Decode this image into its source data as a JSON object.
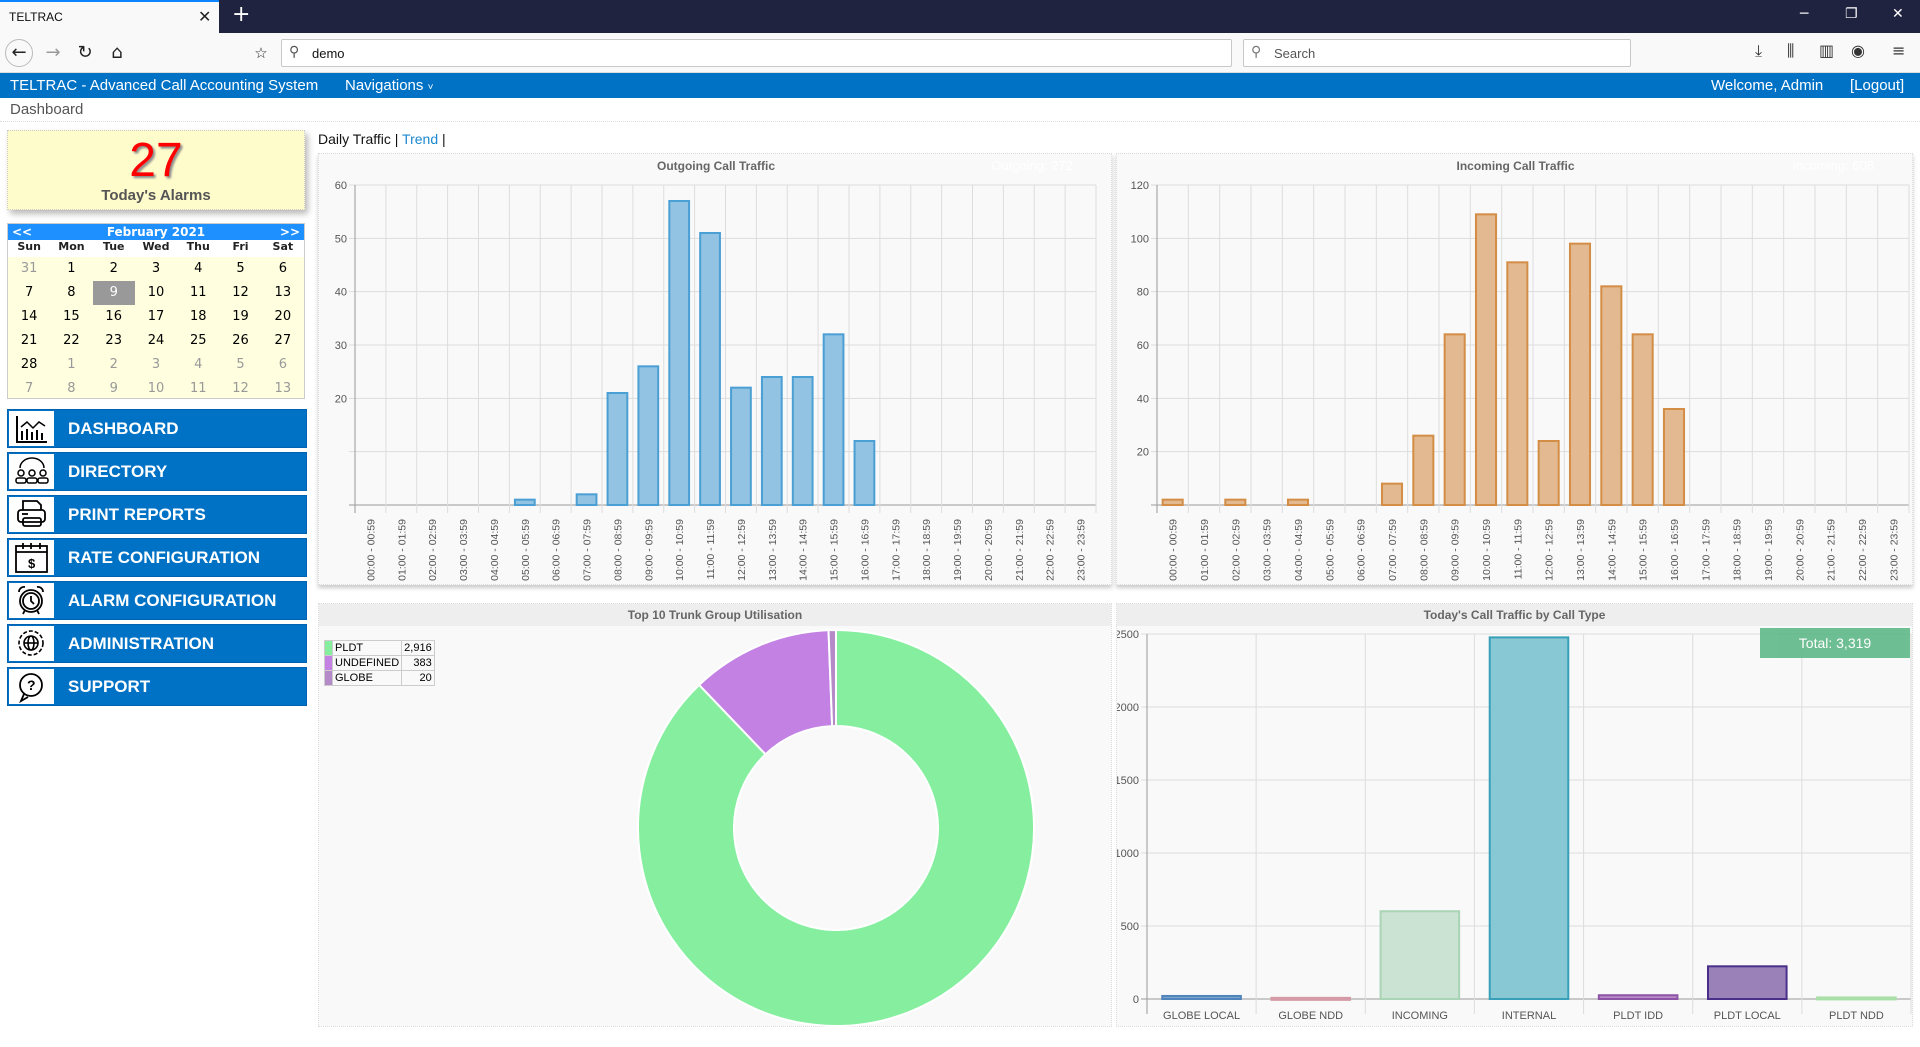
{
  "browser": {
    "tab_title": "TELTRAC",
    "url": "demo",
    "search_placeholder": "Search"
  },
  "app": {
    "title": "TELTRAC - Advanced Call Accounting System",
    "nav_label": "Navigations",
    "welcome": "Welcome, Admin",
    "logout": "[Logout]",
    "breadcrumb": "Dashboard"
  },
  "alarms": {
    "count": "27",
    "label": "Today's Alarms"
  },
  "calendar": {
    "prev": "<<",
    "next": ">>",
    "month": "February 2021",
    "dow": [
      "Sun",
      "Mon",
      "Tue",
      "Wed",
      "Thu",
      "Fri",
      "Sat"
    ],
    "weeks": [
      [
        {
          "d": "31",
          "o": true
        },
        {
          "d": "1"
        },
        {
          "d": "2"
        },
        {
          "d": "3"
        },
        {
          "d": "4"
        },
        {
          "d": "5"
        },
        {
          "d": "6"
        }
      ],
      [
        {
          "d": "7"
        },
        {
          "d": "8"
        },
        {
          "d": "9",
          "sel": true
        },
        {
          "d": "10"
        },
        {
          "d": "11"
        },
        {
          "d": "12"
        },
        {
          "d": "13"
        }
      ],
      [
        {
          "d": "14"
        },
        {
          "d": "15"
        },
        {
          "d": "16"
        },
        {
          "d": "17"
        },
        {
          "d": "18"
        },
        {
          "d": "19"
        },
        {
          "d": "20"
        }
      ],
      [
        {
          "d": "21"
        },
        {
          "d": "22"
        },
        {
          "d": "23"
        },
        {
          "d": "24"
        },
        {
          "d": "25"
        },
        {
          "d": "26"
        },
        {
          "d": "27"
        }
      ],
      [
        {
          "d": "28"
        },
        {
          "d": "1",
          "o": true
        },
        {
          "d": "2",
          "o": true
        },
        {
          "d": "3",
          "o": true
        },
        {
          "d": "4",
          "o": true
        },
        {
          "d": "5",
          "o": true
        },
        {
          "d": "6",
          "o": true
        }
      ],
      [
        {
          "d": "7",
          "o": true
        },
        {
          "d": "8",
          "o": true
        },
        {
          "d": "9",
          "o": true
        },
        {
          "d": "10",
          "o": true
        },
        {
          "d": "11",
          "o": true
        },
        {
          "d": "12",
          "o": true
        },
        {
          "d": "13",
          "o": true
        }
      ]
    ]
  },
  "menu": [
    {
      "label": "DASHBOARD",
      "icon": "dashboard-chart-icon"
    },
    {
      "label": "DIRECTORY",
      "icon": "people-group-icon"
    },
    {
      "label": "PRINT REPORTS",
      "icon": "printer-icon"
    },
    {
      "label": "RATE CONFIGURATION",
      "icon": "calendar-dollar-icon"
    },
    {
      "label": "ALARM CONFIGURATION",
      "icon": "alarm-clock-icon"
    },
    {
      "label": "ADMINISTRATION",
      "icon": "gear-globe-icon"
    },
    {
      "label": "SUPPORT",
      "icon": "help-bubble-icon"
    }
  ],
  "links": {
    "daily": "Daily Traffic",
    "sep": " | ",
    "trend": "Trend",
    "sep2": " |"
  },
  "chart_data": [
    {
      "type": "bar",
      "title": "Outgoing Call Traffic",
      "total_label": "Outgoing: 272",
      "color": "#4a9fd4",
      "fill": "#93c3e3",
      "categories": [
        "00:00 - 00:59",
        "01:00 - 01:59",
        "02:00 - 02:59",
        "03:00 - 03:59",
        "04:00 - 04:59",
        "05:00 - 05:59",
        "06:00 - 06:59",
        "07:00 - 07:59",
        "08:00 - 08:59",
        "09:00 - 09:59",
        "10:00 - 10:59",
        "11:00 - 11:59",
        "12:00 - 12:59",
        "13:00 - 13:59",
        "14:00 - 14:59",
        "15:00 - 15:59",
        "16:00 - 16:59",
        "17:00 - 17:59",
        "18:00 - 18:59",
        "19:00 - 19:59",
        "20:00 - 20:59",
        "21:00 - 21:59",
        "22:00 - 22:59",
        "23:00 - 23:59"
      ],
      "values": [
        0,
        0,
        0,
        0,
        0,
        1,
        0,
        2,
        21,
        26,
        57,
        51,
        22,
        24,
        24,
        32,
        12,
        0,
        0,
        0,
        0,
        0,
        0,
        0
      ],
      "ylim": [
        0,
        60
      ],
      "yticks": [
        20,
        30,
        40,
        50,
        60
      ],
      "ygrid": [
        0,
        10,
        20,
        30,
        40,
        50,
        60
      ],
      "grid": true
    },
    {
      "type": "bar",
      "title": "Incoming Call Traffic",
      "total_label": "Incoming: 608",
      "color": "#d38d44",
      "fill": "#e3b992",
      "categories": [
        "00:00 - 00:59",
        "01:00 - 01:59",
        "02:00 - 02:59",
        "03:00 - 03:59",
        "04:00 - 04:59",
        "05:00 - 05:59",
        "06:00 - 06:59",
        "07:00 - 07:59",
        "08:00 - 08:59",
        "09:00 - 09:59",
        "10:00 - 10:59",
        "11:00 - 11:59",
        "12:00 - 12:59",
        "13:00 - 13:59",
        "14:00 - 14:59",
        "15:00 - 15:59",
        "16:00 - 16:59",
        "17:00 - 17:59",
        "18:00 - 18:59",
        "19:00 - 19:59",
        "20:00 - 20:59",
        "21:00 - 21:59",
        "22:00 - 22:59",
        "23:00 - 23:59"
      ],
      "values": [
        2,
        0,
        2,
        0,
        2,
        0,
        0,
        8,
        26,
        64,
        109,
        91,
        24,
        98,
        82,
        64,
        36,
        0,
        0,
        0,
        0,
        0,
        0,
        0
      ],
      "ylim": [
        0,
        120
      ],
      "yticks": [
        20,
        40,
        60,
        80,
        100,
        120
      ],
      "ygrid": [
        0,
        20,
        40,
        60,
        80,
        100,
        120
      ],
      "grid": true
    },
    {
      "type": "pie",
      "title": "Top 10 Trunk Group Utilisation",
      "donut": true,
      "slices": [
        {
          "label": "PLDT",
          "value": 2916,
          "display": "2,916",
          "color": "#86ee9f"
        },
        {
          "label": "UNDEFINED",
          "value": 383,
          "display": "383",
          "color": "#c281e3"
        },
        {
          "label": "GLOBE",
          "value": 20,
          "display": "20",
          "color": "#b48bc8"
        }
      ],
      "legend": "top-left"
    },
    {
      "type": "bar",
      "title": "Today's Call Traffic by Call Type",
      "total_label": "Total: 3,319",
      "categories": [
        "GLOBE LOCAL",
        "GLOBE NDD",
        "INCOMING",
        "INTERNAL",
        "PLDT IDD",
        "PLDT LOCAL",
        "PLDT NDD"
      ],
      "values": [
        14,
        1,
        594,
        2470,
        19,
        217,
        4
      ],
      "colors": [
        {
          "fill": "#7ca6cf",
          "stroke": "#4f84bc"
        },
        {
          "fill": "#e8b8c0",
          "stroke": "#d49aa5"
        },
        {
          "fill": "#cbe3d3",
          "stroke": "#a9d4b5"
        },
        {
          "fill": "#88c8d4",
          "stroke": "#37a0b8"
        },
        {
          "fill": "#b78ac6",
          "stroke": "#8e55a6"
        },
        {
          "fill": "#9a82b8",
          "stroke": "#4a2f8a"
        },
        {
          "fill": "#c8f0c8",
          "stroke": "#a8e0a8"
        }
      ],
      "ylim": [
        0,
        2500
      ],
      "yticks": [
        0,
        500,
        1000,
        1500,
        2000,
        2500
      ],
      "grid": true
    }
  ]
}
